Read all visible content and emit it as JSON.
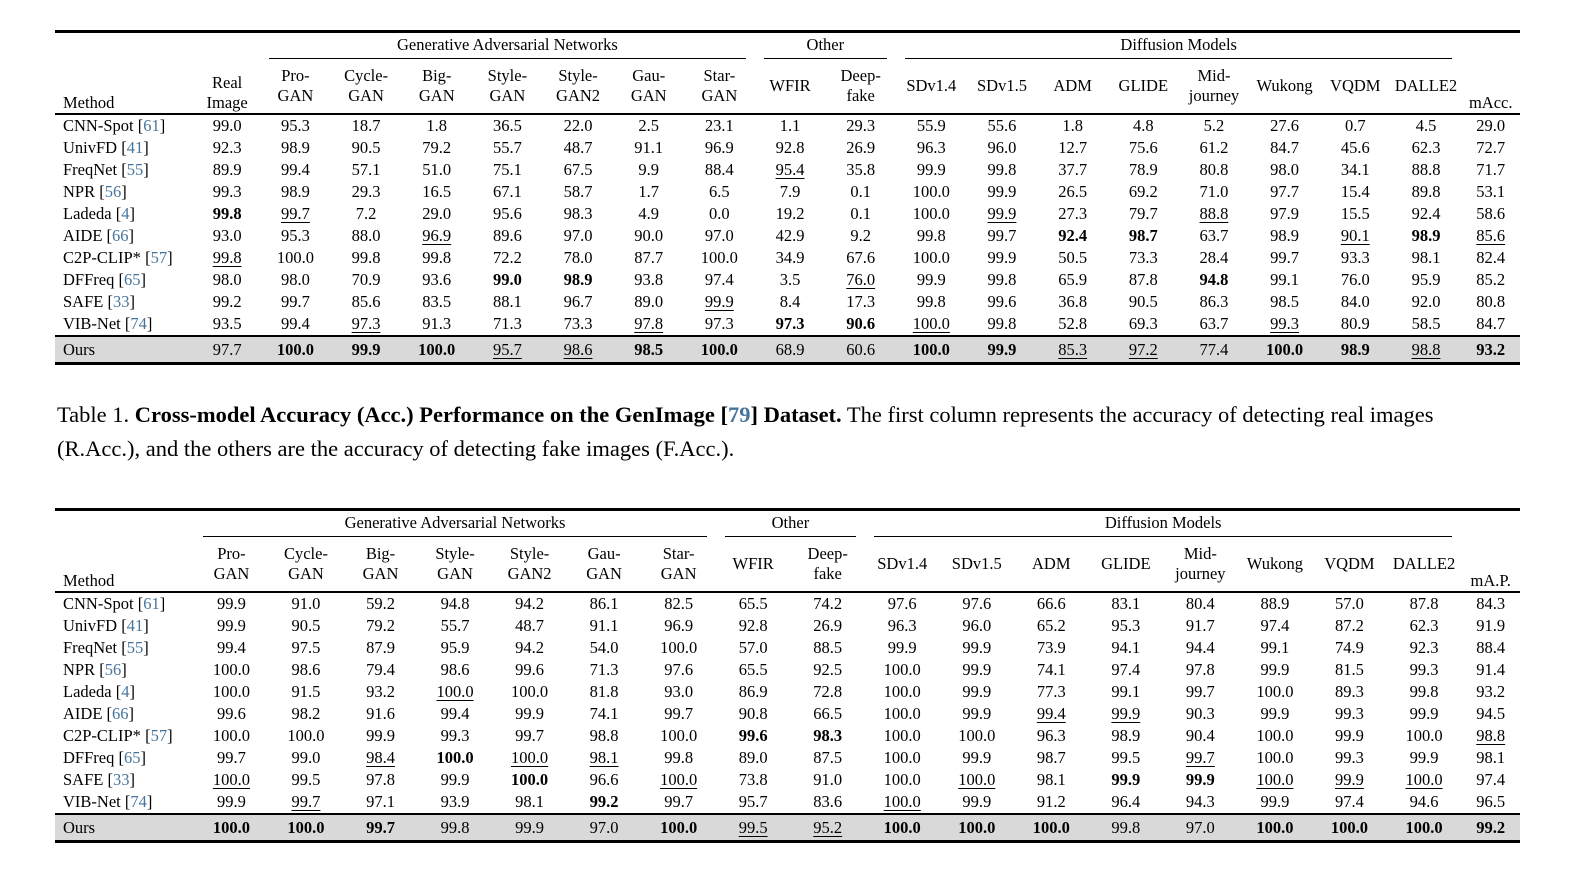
{
  "page": {
    "background": "#ffffff",
    "citation_color": "#46749c",
    "ours_row_bg": "#d9d9d9"
  },
  "caption": {
    "label": "Table 1.",
    "bold_before_ref": "Cross-model Accuracy (Acc.) Performance on the GenImage [",
    "ref": "79",
    "bold_after_ref": "] Dataset.",
    "text": "The first column represents the accuracy of detecting real images (R.Acc.), and the others are the accuracy of detecting fake images (F.Acc.)."
  },
  "table1": {
    "method_header": "Method",
    "real_header": "Real\nImage",
    "metric_header": "mAcc.",
    "groups": [
      {
        "label": "Generative Adversarial Networks",
        "span": 7
      },
      {
        "label": "Other",
        "span": 2
      },
      {
        "label": "Diffusion Models",
        "span": 8
      }
    ],
    "columns": [
      "Pro-\nGAN",
      "Cycle-\nGAN",
      "Big-\nGAN",
      "Style-\nGAN",
      "Style-\nGAN2",
      "Gau-\nGAN",
      "Star-\nGAN",
      "WFIR",
      "Deep-\nfake",
      "SDv1.4",
      "SDv1.5",
      "ADM",
      "GLIDE",
      "Mid-\njourney",
      "Wukong",
      "VQDM",
      "DALLE2"
    ],
    "rows": [
      {
        "method": "CNN-Spot",
        "ref": "61",
        "cells": [
          "99.0",
          "95.3",
          "18.7",
          "1.8",
          "36.5",
          "22.0",
          "2.5",
          "23.1",
          "1.1",
          "29.3",
          "55.9",
          "55.6",
          "1.8",
          "4.8",
          "5.2",
          "27.6",
          "0.7",
          "4.5",
          "29.0"
        ]
      },
      {
        "method": "UnivFD",
        "ref": "41",
        "cells": [
          "92.3",
          "98.9",
          "90.5",
          "79.2",
          "55.7",
          "48.7",
          "91.1",
          "96.9",
          "92.8",
          "26.9",
          "96.3",
          "96.0",
          "12.7",
          "75.6",
          "61.2",
          "84.7",
          "45.6",
          "62.3",
          "72.7"
        ]
      },
      {
        "method": "FreqNet",
        "ref": "55",
        "cells": [
          "89.9",
          "99.4",
          "57.1",
          "51.0",
          "75.1",
          "67.5",
          "9.9",
          "88.4",
          "u:95.4",
          "35.8",
          "99.9",
          "99.8",
          "37.7",
          "78.9",
          "80.8",
          "98.0",
          "34.1",
          "88.8",
          "71.7"
        ]
      },
      {
        "method": "NPR",
        "ref": "56",
        "cells": [
          "99.3",
          "98.9",
          "29.3",
          "16.5",
          "67.1",
          "58.7",
          "1.7",
          "6.5",
          "7.9",
          "0.1",
          "100.0",
          "99.9",
          "26.5",
          "69.2",
          "71.0",
          "97.7",
          "15.4",
          "89.8",
          "53.1"
        ]
      },
      {
        "method": "Ladeda",
        "ref": "4",
        "cells": [
          "b:99.8",
          "u:99.7",
          "7.2",
          "29.0",
          "95.6",
          "98.3",
          "4.9",
          "0.0",
          "19.2",
          "0.1",
          "100.0",
          "u:99.9",
          "27.3",
          "79.7",
          "u:88.8",
          "97.9",
          "15.5",
          "92.4",
          "58.6"
        ]
      },
      {
        "method": "AIDE",
        "ref": "66",
        "cells": [
          "93.0",
          "95.3",
          "88.0",
          "u:96.9",
          "89.6",
          "97.0",
          "90.0",
          "97.0",
          "42.9",
          "9.2",
          "99.8",
          "99.7",
          "b:92.4",
          "b:98.7",
          "63.7",
          "98.9",
          "u:90.1",
          "b:98.9",
          "u:85.6"
        ]
      },
      {
        "method": "C2P-CLIP*",
        "ref": "57",
        "cells": [
          "u:99.8",
          "100.0",
          "99.8",
          "99.8",
          "72.2",
          "78.0",
          "87.7",
          "100.0",
          "34.9",
          "67.6",
          "100.0",
          "99.9",
          "50.5",
          "73.3",
          "28.4",
          "99.7",
          "93.3",
          "98.1",
          "82.4"
        ]
      },
      {
        "method": "DFFreq",
        "ref": "65",
        "cells": [
          "98.0",
          "98.0",
          "70.9",
          "93.6",
          "b:99.0",
          "b:98.9",
          "93.8",
          "97.4",
          "3.5",
          "u:76.0",
          "99.9",
          "99.8",
          "65.9",
          "87.8",
          "b:94.8",
          "99.1",
          "76.0",
          "95.9",
          "85.2"
        ]
      },
      {
        "method": "SAFE",
        "ref": "33",
        "cells": [
          "99.2",
          "99.7",
          "85.6",
          "83.5",
          "88.1",
          "96.7",
          "89.0",
          "u:99.9",
          "8.4",
          "17.3",
          "99.8",
          "99.6",
          "36.8",
          "90.5",
          "86.3",
          "98.5",
          "84.0",
          "92.0",
          "80.8"
        ]
      },
      {
        "method": "VIB-Net",
        "ref": "74",
        "cells": [
          "93.5",
          "99.4",
          "u:97.3",
          "91.3",
          "71.3",
          "73.3",
          "u:97.8",
          "97.3",
          "b:97.3",
          "b:90.6",
          "u:100.0",
          "99.8",
          "52.8",
          "69.3",
          "63.7",
          "u:99.3",
          "80.9",
          "58.5",
          "84.7"
        ]
      },
      {
        "method": "Ours",
        "ref": null,
        "ours": true,
        "cells": [
          "97.7",
          "b:100.0",
          "b:99.9",
          "b:100.0",
          "u:95.7",
          "u:98.6",
          "b:98.5",
          "b:100.0",
          "68.9",
          "60.6",
          "b:100.0",
          "b:99.9",
          "u:85.3",
          "u:97.2",
          "77.4",
          "b:100.0",
          "b:98.9",
          "u:98.8",
          "b:93.2"
        ]
      }
    ]
  },
  "table2": {
    "method_header": "Method",
    "metric_header": "mA.P.",
    "groups": [
      {
        "label": "Generative Adversarial Networks",
        "span": 7
      },
      {
        "label": "Other",
        "span": 2
      },
      {
        "label": "Diffusion Models",
        "span": 8
      }
    ],
    "columns": [
      "Pro-\nGAN",
      "Cycle-\nGAN",
      "Big-\nGAN",
      "Style-\nGAN",
      "Style-\nGAN2",
      "Gau-\nGAN",
      "Star-\nGAN",
      "WFIR",
      "Deep-\nfake",
      "SDv1.4",
      "SDv1.5",
      "ADM",
      "GLIDE",
      "Mid-\njourney",
      "Wukong",
      "VQDM",
      "DALLE2"
    ],
    "rows": [
      {
        "method": "CNN-Spot",
        "ref": "61",
        "cells": [
          "99.9",
          "91.0",
          "59.2",
          "94.8",
          "94.2",
          "86.1",
          "82.5",
          "65.5",
          "74.2",
          "97.6",
          "97.6",
          "66.6",
          "83.1",
          "80.4",
          "88.9",
          "57.0",
          "87.8",
          "84.3"
        ]
      },
      {
        "method": "UnivFD",
        "ref": "41",
        "cells": [
          "99.9",
          "90.5",
          "79.2",
          "55.7",
          "48.7",
          "91.1",
          "96.9",
          "92.8",
          "26.9",
          "96.3",
          "96.0",
          "65.2",
          "95.3",
          "91.7",
          "97.4",
          "87.2",
          "62.3",
          "91.9"
        ]
      },
      {
        "method": "FreqNet",
        "ref": "55",
        "cells": [
          "99.4",
          "97.5",
          "87.9",
          "95.9",
          "94.2",
          "54.0",
          "100.0",
          "57.0",
          "88.5",
          "99.9",
          "99.9",
          "73.9",
          "94.1",
          "94.4",
          "99.1",
          "74.9",
          "92.3",
          "88.4"
        ]
      },
      {
        "method": "NPR",
        "ref": "56",
        "cells": [
          "100.0",
          "98.6",
          "79.4",
          "98.6",
          "99.6",
          "71.3",
          "97.6",
          "65.5",
          "92.5",
          "100.0",
          "99.9",
          "74.1",
          "97.4",
          "97.8",
          "99.9",
          "81.5",
          "99.3",
          "91.4"
        ]
      },
      {
        "method": "Ladeda",
        "ref": "4",
        "cells": [
          "100.0",
          "91.5",
          "93.2",
          "u:100.0",
          "100.0",
          "81.8",
          "93.0",
          "86.9",
          "72.8",
          "100.0",
          "99.9",
          "77.3",
          "99.1",
          "99.7",
          "100.0",
          "89.3",
          "99.8",
          "93.2"
        ]
      },
      {
        "method": "AIDE",
        "ref": "66",
        "cells": [
          "99.6",
          "98.2",
          "91.6",
          "99.4",
          "99.9",
          "74.1",
          "99.7",
          "90.8",
          "66.5",
          "100.0",
          "99.9",
          "u:99.4",
          "u:99.9",
          "90.3",
          "99.9",
          "99.3",
          "99.9",
          "94.5"
        ]
      },
      {
        "method": "C2P-CLIP*",
        "ref": "57",
        "cells": [
          "100.0",
          "100.0",
          "99.9",
          "99.3",
          "99.7",
          "98.8",
          "100.0",
          "b:99.6",
          "b:98.3",
          "100.0",
          "100.0",
          "96.3",
          "98.9",
          "90.4",
          "100.0",
          "99.9",
          "100.0",
          "u:98.8"
        ]
      },
      {
        "method": "DFFreq",
        "ref": "65",
        "cells": [
          "99.7",
          "99.0",
          "u:98.4",
          "b:100.0",
          "u:100.0",
          "u:98.1",
          "99.8",
          "89.0",
          "87.5",
          "100.0",
          "99.9",
          "98.7",
          "99.5",
          "u:99.7",
          "100.0",
          "99.3",
          "99.9",
          "98.1"
        ]
      },
      {
        "method": "SAFE",
        "ref": "33",
        "cells": [
          "u:100.0",
          "99.5",
          "97.8",
          "99.9",
          "b:100.0",
          "96.6",
          "u:100.0",
          "73.8",
          "91.0",
          "100.0",
          "u:100.0",
          "98.1",
          "b:99.9",
          "b:99.9",
          "u:100.0",
          "u:99.9",
          "u:100.0",
          "97.4"
        ]
      },
      {
        "method": "VIB-Net",
        "ref": "74",
        "cells": [
          "99.9",
          "u:99.7",
          "97.1",
          "93.9",
          "98.1",
          "b:99.2",
          "99.7",
          "95.7",
          "83.6",
          "u:100.0",
          "99.9",
          "91.2",
          "96.4",
          "94.3",
          "99.9",
          "97.4",
          "94.6",
          "96.5"
        ]
      },
      {
        "method": "Ours",
        "ref": null,
        "ours": true,
        "cells": [
          "b:100.0",
          "b:100.0",
          "b:99.7",
          "99.8",
          "99.9",
          "97.0",
          "b:100.0",
          "u:99.5",
          "u:95.2",
          "b:100.0",
          "b:100.0",
          "b:100.0",
          "99.8",
          "97.0",
          "b:100.0",
          "b:100.0",
          "b:100.0",
          "b:99.2"
        ]
      }
    ]
  }
}
